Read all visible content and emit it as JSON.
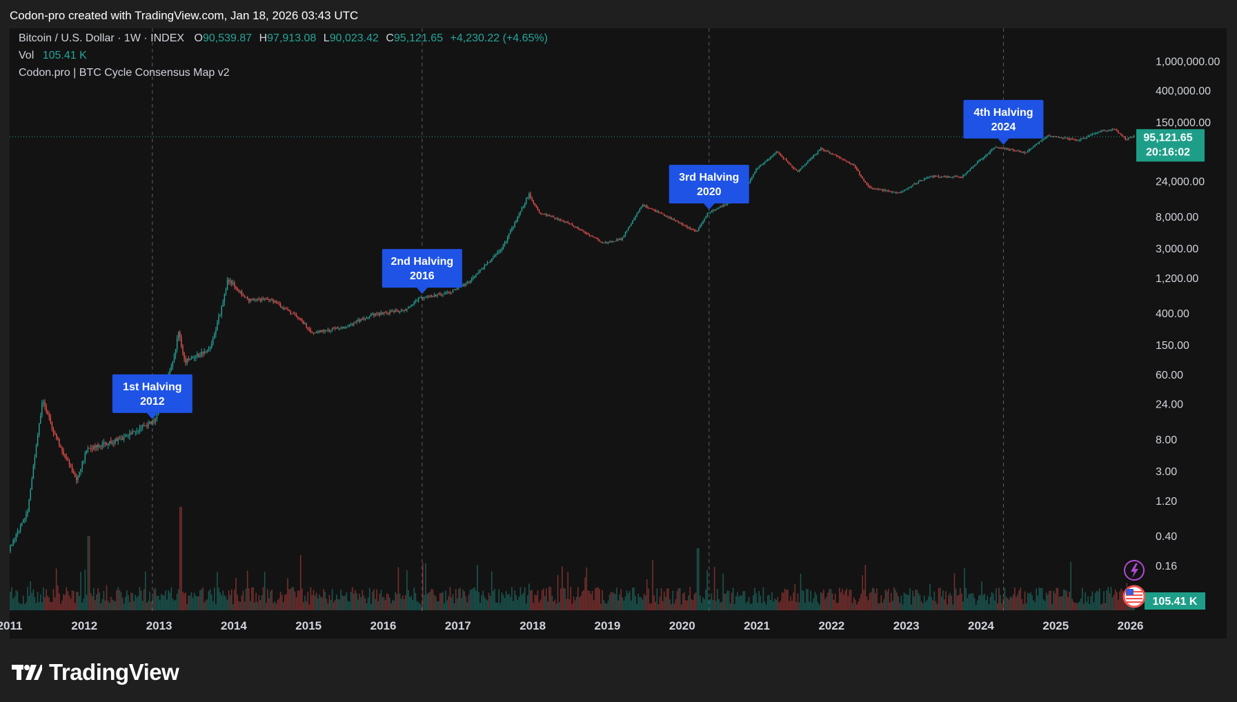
{
  "header": {
    "attribution": "Codon-pro created with TradingView.com, Jan 18, 2026 03:43 UTC"
  },
  "legend": {
    "symbol": "Bitcoin / U.S. Dollar · 1W · INDEX",
    "open_label": "O",
    "open": "90,539.87",
    "high_label": "H",
    "high": "97,913.08",
    "low_label": "L",
    "low": "90,023.42",
    "close_label": "C",
    "close": "95,121.65",
    "change": "+4,230.22 (+4.65%)",
    "vol_label": "Vol",
    "vol": "105.41 K",
    "indicator": "Codon.pro | BTC Cycle Consensus Map v2"
  },
  "price_badge": {
    "price": "95,121.65",
    "countdown": "20:16:02"
  },
  "volume_badge": "105.41 K",
  "footer": {
    "brand": "TradingView"
  },
  "colors": {
    "up": "#26a69a",
    "down": "#ef5350",
    "label_bg": "#1e53e5",
    "badge_bg": "#1e9e88",
    "grid": "#2a2e39"
  },
  "icons": [
    "lightning-icon",
    "us-flag-icon"
  ],
  "chart_data": {
    "type": "candlestick",
    "title": "Bitcoin / U.S. Dollar · 1W · INDEX",
    "y_scale": "log",
    "y_tick_labels": [
      "1,000,000.00",
      "400,000.00",
      "150,000.00",
      "24,000.00",
      "8,000.00",
      "3,000.00",
      "1,200.00",
      "400.00",
      "150.00",
      "60.00",
      "24.00",
      "8.00",
      "3.00",
      "1.20",
      "0.40",
      "0.16"
    ],
    "x_tick_labels": [
      "2011",
      "2012",
      "2013",
      "2014",
      "2015",
      "2016",
      "2017",
      "2018",
      "2019",
      "2020",
      "2021",
      "2022",
      "2023",
      "2024",
      "2025",
      "2026"
    ],
    "xlim": [
      2011.0,
      2026.05
    ],
    "last_price": 95121.65,
    "approx_price_path": [
      {
        "t": 2011.0,
        "p": 0.25
      },
      {
        "t": 2011.25,
        "p": 0.9
      },
      {
        "t": 2011.45,
        "p": 28
      },
      {
        "t": 2011.6,
        "p": 10
      },
      {
        "t": 2011.9,
        "p": 2.3
      },
      {
        "t": 2012.05,
        "p": 6
      },
      {
        "t": 2012.5,
        "p": 8
      },
      {
        "t": 2012.8,
        "p": 12
      },
      {
        "t": 2012.95,
        "p": 14
      },
      {
        "t": 2013.2,
        "p": 90
      },
      {
        "t": 2013.27,
        "p": 230
      },
      {
        "t": 2013.35,
        "p": 90
      },
      {
        "t": 2013.7,
        "p": 130
      },
      {
        "t": 2013.85,
        "p": 500
      },
      {
        "t": 2013.93,
        "p": 1150
      },
      {
        "t": 2014.2,
        "p": 600
      },
      {
        "t": 2014.5,
        "p": 620
      },
      {
        "t": 2014.9,
        "p": 330
      },
      {
        "t": 2015.05,
        "p": 220
      },
      {
        "t": 2015.5,
        "p": 260
      },
      {
        "t": 2015.85,
        "p": 380
      },
      {
        "t": 2016.3,
        "p": 440
      },
      {
        "t": 2016.5,
        "p": 650
      },
      {
        "t": 2016.9,
        "p": 750
      },
      {
        "t": 2017.2,
        "p": 1150
      },
      {
        "t": 2017.6,
        "p": 3000
      },
      {
        "t": 2017.96,
        "p": 16000
      },
      {
        "t": 2018.1,
        "p": 9000
      },
      {
        "t": 2018.5,
        "p": 6500
      },
      {
        "t": 2018.95,
        "p": 3500
      },
      {
        "t": 2019.2,
        "p": 4000
      },
      {
        "t": 2019.48,
        "p": 11500
      },
      {
        "t": 2019.9,
        "p": 7200
      },
      {
        "t": 2020.2,
        "p": 5000
      },
      {
        "t": 2020.35,
        "p": 8800
      },
      {
        "t": 2020.8,
        "p": 15000
      },
      {
        "t": 2021.0,
        "p": 35000
      },
      {
        "t": 2021.28,
        "p": 60000
      },
      {
        "t": 2021.55,
        "p": 32000
      },
      {
        "t": 2021.87,
        "p": 66000
      },
      {
        "t": 2022.3,
        "p": 40000
      },
      {
        "t": 2022.5,
        "p": 20000
      },
      {
        "t": 2022.9,
        "p": 16500
      },
      {
        "t": 2023.3,
        "p": 28000
      },
      {
        "t": 2023.75,
        "p": 27000
      },
      {
        "t": 2023.95,
        "p": 42000
      },
      {
        "t": 2024.2,
        "p": 70000
      },
      {
        "t": 2024.6,
        "p": 58000
      },
      {
        "t": 2024.9,
        "p": 98000
      },
      {
        "t": 2025.3,
        "p": 85000
      },
      {
        "t": 2025.6,
        "p": 112000
      },
      {
        "t": 2025.8,
        "p": 120000
      },
      {
        "t": 2025.95,
        "p": 87000
      },
      {
        "t": 2026.04,
        "p": 95121.65
      }
    ],
    "annotations": [
      {
        "text": "1st Halving\n2012",
        "line1": "1st Halving",
        "line2": "2012",
        "t": 2012.91
      },
      {
        "text": "2nd Halving\n2016",
        "line1": "2nd Halving",
        "line2": "2016",
        "t": 2016.52
      },
      {
        "text": "3rd Halving\n2020",
        "line1": "3rd Halving",
        "line2": "2020",
        "t": 2020.36
      },
      {
        "text": "4th Halving\n2024",
        "line1": "4th Halving",
        "line2": "2024",
        "t": 2024.3
      }
    ]
  }
}
